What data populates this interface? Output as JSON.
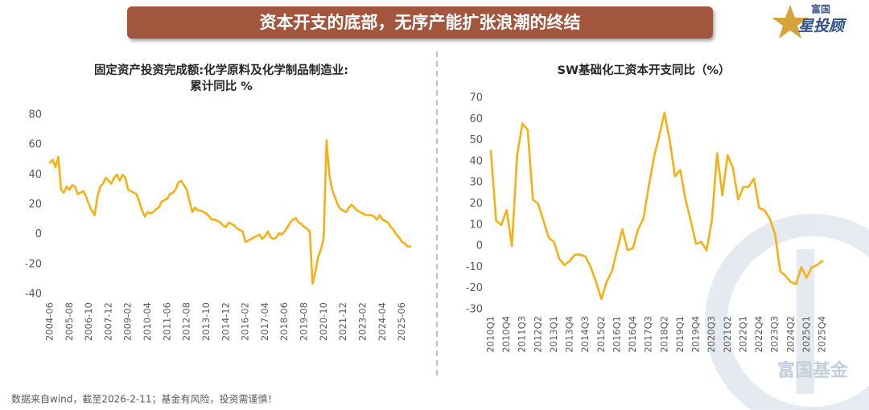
{
  "header": {
    "title": "资本开支的底部，无序产能扩张浪潮的终结"
  },
  "logo": {
    "top": "富国",
    "main": "星投顾"
  },
  "watermark": "富国基金",
  "footer": "数据来自wind，截至2026-2-11；基金有风险，投资需谨慎！",
  "chart_data": [
    {
      "type": "line",
      "title": [
        "固定资产投资完成额:化学原料及化学制品制造业:",
        "累计同比 %"
      ],
      "categories": [
        "2004-06",
        null,
        null,
        null,
        null,
        null,
        null,
        "2005-08",
        null,
        null,
        null,
        null,
        null,
        null,
        "2006-10",
        null,
        null,
        null,
        null,
        null,
        null,
        "2007-12",
        null,
        null,
        null,
        null,
        null,
        null,
        "2009-02",
        null,
        null,
        null,
        null,
        null,
        null,
        "2010-04",
        null,
        null,
        null,
        null,
        null,
        null,
        "2011-06",
        null,
        null,
        null,
        null,
        null,
        null,
        "2012-08",
        null,
        null,
        null,
        null,
        null,
        null,
        "2013-10",
        null,
        null,
        null,
        null,
        null,
        null,
        "2014-12",
        null,
        null,
        null,
        null,
        null,
        null,
        "2016-02",
        null,
        null,
        null,
        null,
        null,
        null,
        "2017-04",
        null,
        null,
        null,
        null,
        null,
        null,
        "2018-06",
        null,
        null,
        null,
        null,
        null,
        null,
        "2019-08",
        null,
        null,
        null,
        null,
        null,
        null,
        "2020-10",
        null,
        null,
        null,
        null,
        null,
        null,
        "2021-12",
        null,
        null,
        null,
        null,
        null,
        null,
        "2023-02",
        null,
        null,
        null,
        null,
        null,
        null,
        "2024-04",
        null,
        null,
        null,
        null,
        null,
        null,
        "2025-06",
        null,
        null,
        null
      ],
      "values": [
        48,
        50,
        45,
        52,
        30,
        28,
        32,
        30,
        33,
        32,
        27,
        28,
        29,
        25,
        20,
        16,
        13,
        25,
        32,
        34,
        38,
        36,
        34,
        38,
        40,
        36,
        40,
        38,
        30,
        29,
        28,
        27,
        22,
        16,
        12,
        15,
        14,
        15,
        17,
        18,
        22,
        23,
        24,
        27,
        28,
        30,
        35,
        36,
        33,
        30,
        22,
        15,
        18,
        16,
        16,
        15,
        14,
        12,
        10,
        10,
        9,
        8,
        6,
        5,
        8,
        7,
        6,
        4,
        3,
        2,
        -5,
        -4,
        -3,
        -2,
        -1,
        0,
        -3,
        -1,
        2,
        -2,
        -3,
        -2,
        1,
        0,
        2,
        5,
        8,
        10,
        11,
        8,
        7,
        5,
        4,
        2,
        -33,
        -25,
        -15,
        -10,
        -2,
        63,
        40,
        30,
        25,
        20,
        17,
        16,
        15,
        18,
        20,
        18,
        16,
        15,
        14,
        13,
        13,
        13,
        12,
        10,
        13,
        10,
        9,
        8,
        5,
        3,
        0,
        -2,
        -5,
        -6,
        -8,
        -8
      ],
      "color": "#f5b014",
      "ylim": [
        -40,
        80
      ],
      "yticks": [
        -40,
        -20,
        0,
        20,
        40,
        60,
        80
      ],
      "grid": false
    },
    {
      "type": "line",
      "title": [
        "SW基础化工资本开支同比（%）"
      ],
      "categories": [
        "2010Q1",
        null,
        null,
        "2010Q4",
        null,
        null,
        "2011Q3",
        null,
        null,
        "2012Q2",
        null,
        null,
        "2013Q1",
        null,
        null,
        "2013Q4",
        null,
        null,
        "2014Q3",
        null,
        null,
        "2015Q2",
        null,
        null,
        "2016Q1",
        null,
        null,
        "2016Q4",
        null,
        null,
        "2017Q3",
        null,
        null,
        "2018Q2",
        null,
        null,
        "2019Q1",
        null,
        null,
        "2019Q4",
        null,
        null,
        "2020Q3",
        null,
        null,
        "2021Q2",
        null,
        null,
        "2022Q1",
        null,
        null,
        "2022Q4",
        null,
        null,
        "2023Q3",
        null,
        null,
        "2024Q2",
        null,
        null,
        "2025Q1",
        null,
        null,
        "2025Q4"
      ],
      "values": [
        45,
        12,
        10,
        17,
        0,
        43,
        58,
        55,
        22,
        20,
        12,
        4,
        2,
        -6,
        -9,
        -7,
        -4,
        -4,
        -5,
        -10,
        -17,
        -25,
        -17,
        -12,
        -2,
        8,
        -2,
        -1,
        8,
        13,
        28,
        42,
        52,
        63,
        50,
        33,
        36,
        22,
        12,
        1,
        2,
        -2,
        12,
        44,
        24,
        43,
        37,
        22,
        28,
        28,
        32,
        18,
        17,
        13,
        6,
        -12,
        -14,
        -17,
        -18,
        -10,
        -15,
        -10,
        -9,
        -7
      ],
      "color": "#f5b014",
      "ylim": [
        -30,
        70
      ],
      "yticks": [
        -30,
        -20,
        -10,
        0,
        10,
        20,
        30,
        40,
        50,
        60,
        70
      ],
      "grid": false
    }
  ]
}
